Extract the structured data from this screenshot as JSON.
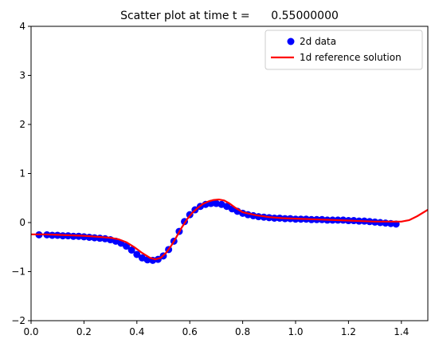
{
  "chart_data": {
    "type": "scatter",
    "title": "Scatter plot at time t =      0.55000000",
    "xlabel": "",
    "ylabel": "",
    "xlim": [
      0.0,
      1.5
    ],
    "ylim": [
      -2,
      4
    ],
    "x_ticks": [
      "0.0",
      "0.2",
      "0.4",
      "0.6",
      "0.8",
      "1.0",
      "1.2",
      "1.4"
    ],
    "y_ticks": [
      "−2",
      "−1",
      "0",
      "1",
      "2",
      "3",
      "4"
    ],
    "grid": false,
    "legend_position": "top-right",
    "legend": [
      "2d data",
      "1d reference solution"
    ],
    "series": [
      {
        "name": "2d data",
        "kind": "scatter",
        "color": "#0000ff",
        "x": [
          0.03,
          0.06,
          0.08,
          0.1,
          0.12,
          0.14,
          0.16,
          0.18,
          0.2,
          0.22,
          0.24,
          0.26,
          0.28,
          0.3,
          0.32,
          0.34,
          0.36,
          0.38,
          0.4,
          0.42,
          0.44,
          0.46,
          0.48,
          0.5,
          0.52,
          0.54,
          0.56,
          0.58,
          0.6,
          0.62,
          0.64,
          0.66,
          0.68,
          0.7,
          0.72,
          0.74,
          0.76,
          0.78,
          0.8,
          0.82,
          0.84,
          0.86,
          0.88,
          0.9,
          0.92,
          0.94,
          0.96,
          0.98,
          1.0,
          1.02,
          1.04,
          1.06,
          1.08,
          1.1,
          1.12,
          1.14,
          1.16,
          1.18,
          1.2,
          1.22,
          1.24,
          1.26,
          1.28,
          1.3,
          1.32,
          1.34,
          1.36,
          1.38
        ],
        "y": [
          -0.25,
          -0.25,
          -0.26,
          -0.26,
          -0.27,
          -0.27,
          -0.28,
          -0.28,
          -0.29,
          -0.3,
          -0.31,
          -0.32,
          -0.33,
          -0.35,
          -0.38,
          -0.42,
          -0.48,
          -0.56,
          -0.65,
          -0.72,
          -0.76,
          -0.77,
          -0.75,
          -0.68,
          -0.55,
          -0.38,
          -0.18,
          0.02,
          0.16,
          0.26,
          0.33,
          0.37,
          0.39,
          0.39,
          0.37,
          0.33,
          0.28,
          0.23,
          0.19,
          0.16,
          0.14,
          0.12,
          0.11,
          0.1,
          0.09,
          0.09,
          0.08,
          0.08,
          0.07,
          0.07,
          0.07,
          0.06,
          0.06,
          0.06,
          0.05,
          0.05,
          0.05,
          0.05,
          0.04,
          0.04,
          0.03,
          0.03,
          0.02,
          0.01,
          0.0,
          -0.01,
          -0.02,
          -0.03
        ]
      },
      {
        "name": "1d reference solution",
        "kind": "line",
        "color": "#ff0000",
        "x": [
          0.0,
          0.05,
          0.1,
          0.15,
          0.2,
          0.25,
          0.3,
          0.33,
          0.36,
          0.39,
          0.42,
          0.45,
          0.47,
          0.49,
          0.51,
          0.53,
          0.55,
          0.57,
          0.59,
          0.61,
          0.63,
          0.65,
          0.67,
          0.69,
          0.71,
          0.73,
          0.75,
          0.77,
          0.8,
          0.85,
          0.9,
          0.95,
          1.0,
          1.05,
          1.1,
          1.15,
          1.2,
          1.25,
          1.3,
          1.35,
          1.4,
          1.43,
          1.46,
          1.5
        ],
        "y": [
          -0.24,
          -0.24,
          -0.25,
          -0.26,
          -0.27,
          -0.29,
          -0.31,
          -0.34,
          -0.4,
          -0.5,
          -0.62,
          -0.72,
          -0.75,
          -0.72,
          -0.62,
          -0.47,
          -0.29,
          -0.1,
          0.07,
          0.2,
          0.3,
          0.38,
          0.43,
          0.46,
          0.47,
          0.45,
          0.39,
          0.31,
          0.21,
          0.15,
          0.11,
          0.09,
          0.08,
          0.07,
          0.06,
          0.05,
          0.04,
          0.03,
          0.02,
          0.02,
          0.02,
          0.05,
          0.13,
          0.26
        ]
      }
    ]
  }
}
